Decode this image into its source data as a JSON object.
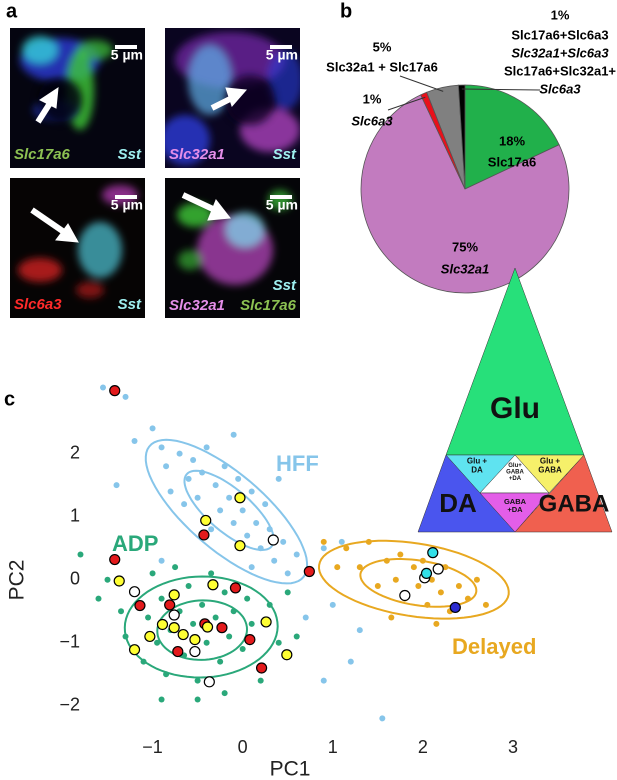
{
  "panel_labels": [
    "a",
    "b",
    "c"
  ],
  "micrographs": [
    {
      "scale_bar": "5 µm",
      "labels": [
        {
          "text": "Slc17a6",
          "color": "#8cc152"
        },
        {
          "text": "Sst",
          "color": "#9ff0f0"
        }
      ]
    },
    {
      "scale_bar": "5 µm",
      "labels": [
        {
          "text": "Slc32a1",
          "color": "#e48ee8"
        },
        {
          "text": "Sst",
          "color": "#9ff0f0"
        }
      ]
    },
    {
      "scale_bar": "5 µm",
      "labels": [
        {
          "text": "Slc6a3",
          "color": "#ff2a2a"
        },
        {
          "text": "Sst",
          "color": "#9ff0f0"
        }
      ]
    },
    {
      "scale_bar": "5 µm",
      "labels": [
        {
          "text": "Sst",
          "color": "#9ff0f0"
        },
        {
          "text": "Slc32a1",
          "color": "#e48ee8"
        },
        {
          "text": "Slc17a6",
          "color": "#8cc152"
        }
      ]
    }
  ],
  "chart_data": [
    {
      "type": "pie",
      "categories": [
        "Slc17a6",
        "Slc32a1",
        "Slc6a3",
        "Slc32a1 + Slc17a6",
        [
          "Slc17a6+Slc6a3",
          "Slc32a1+Slc6a3",
          "Slc17a6+Slc32a1+",
          "Slc6a3"
        ]
      ],
      "values": [
        18,
        75,
        1,
        5,
        1
      ],
      "value_labels": [
        "18%",
        "75%",
        "1%",
        "5%",
        "1%"
      ],
      "colors": [
        "#21b04b",
        "#c27bbf",
        "#e8101a",
        "#808080",
        "#000000"
      ]
    },
    {
      "type": "scatter",
      "xlabel": "PC1",
      "ylabel": "PC2",
      "xlim": [
        -1.65,
        3.3
      ],
      "ylim": [
        -2.4,
        3.2
      ],
      "xticks": [
        {
          "value": -1,
          "label": "−1"
        },
        0,
        1,
        2,
        3
      ],
      "yticks": [
        {
          "value": -2,
          "label": "−2"
        },
        {
          "value": -1,
          "label": "−1"
        },
        0,
        1,
        2
      ],
      "series": [
        {
          "name": "HFF",
          "color": "#86c5ea",
          "x": [
            -1.55,
            -1.3,
            -1.2,
            -1.0,
            -0.9,
            -0.85,
            -0.7,
            -0.6,
            -0.55,
            -0.5,
            -0.45,
            -0.4,
            -0.3,
            -0.25,
            -0.2,
            -0.15,
            -0.1,
            -0.05,
            0.0,
            0.05,
            0.1,
            0.15,
            0.2,
            0.25,
            0.3,
            0.35,
            0.45,
            0.5,
            0.6,
            -0.8,
            -0.65,
            -0.35,
            0.1,
            -1.4,
            0.9,
            1.1,
            1.0,
            1.2,
            1.55,
            0.9,
            1.3,
            0.7,
            -0.9,
            0.4,
            -0.1
          ],
          "y": [
            3.05,
            2.9,
            2.2,
            2.4,
            2.1,
            1.8,
            2.0,
            1.6,
            1.9,
            1.3,
            1.7,
            2.1,
            1.5,
            1.1,
            1.8,
            1.3,
            0.9,
            1.6,
            1.1,
            0.7,
            1.4,
            0.9,
            0.5,
            1.2,
            0.8,
            0.3,
            0.6,
            0.1,
            0.4,
            1.4,
            1.2,
            0.8,
            0.2,
            1.5,
            0.5,
            0.6,
            -0.4,
            -1.3,
            -2.2,
            -1.6,
            -0.8,
            -0.6,
            0.3,
            1.6,
            2.3
          ],
          "ellipses": [
            {
              "center": [
                -0.15,
                1.1
              ],
              "width": 0.75,
              "height": 0.28,
              "angle": -54
            },
            {
              "center": [
                -0.18,
                1.08
              ],
              "width": 1.36,
              "height": 0.5,
              "angle": -54
            }
          ]
        },
        {
          "name": "ADP",
          "color": "#2aa87a",
          "x": [
            -1.8,
            -1.5,
            -1.35,
            -1.3,
            -1.2,
            -1.1,
            -1.05,
            -1.0,
            -0.95,
            -0.9,
            -0.85,
            -0.8,
            -0.75,
            -0.7,
            -0.65,
            -0.6,
            -0.55,
            -0.5,
            -0.45,
            -0.4,
            -0.35,
            -0.3,
            -0.25,
            -0.2,
            -0.15,
            -0.1,
            0.0,
            0.05,
            0.1,
            0.2,
            0.3,
            0.4,
            -0.5,
            -0.2,
            0.5,
            0.6,
            -1.6,
            -0.9
          ],
          "y": [
            0.4,
            0.0,
            -0.5,
            -0.9,
            -0.2,
            -1.3,
            -0.6,
            0.1,
            -1.0,
            -0.3,
            -1.5,
            -0.8,
            0.2,
            -0.5,
            -1.2,
            -0.1,
            -0.7,
            -1.6,
            -0.4,
            -1.0,
            0.1,
            -0.6,
            -1.3,
            -0.2,
            -0.9,
            -0.5,
            -1.1,
            -0.3,
            -0.7,
            -1.6,
            -0.4,
            -1.0,
            -1.9,
            -1.8,
            -0.2,
            -0.9,
            -0.3,
            -1.9
          ],
          "ellipses": [
            {
              "center": [
                -0.45,
                -0.8
              ],
              "width": 0.5,
              "height": 0.47,
              "angle": 15
            },
            {
              "center": [
                -0.46,
                -0.75
              ],
              "width": 0.85,
              "height": 0.8,
              "angle": 10
            }
          ]
        },
        {
          "name": "Delayed",
          "color": "#e8a820",
          "x": [
            0.9,
            1.15,
            1.3,
            1.4,
            1.5,
            1.6,
            1.7,
            1.75,
            1.8,
            1.9,
            1.95,
            2.0,
            2.05,
            2.1,
            2.2,
            2.25,
            2.3,
            2.4,
            2.5,
            2.6,
            2.7,
            1.65,
            2.15,
            1.05
          ],
          "y": [
            0.6,
            0.5,
            0.2,
            0.6,
            -0.1,
            0.3,
            0.0,
            0.4,
            -0.3,
            0.2,
            -0.1,
            0.3,
            -0.4,
            0.0,
            -0.2,
            0.2,
            -0.5,
            -0.1,
            -0.3,
            0.0,
            -0.4,
            -0.6,
            -0.7,
            0.2
          ],
          "ellipses": [
            {
              "center": [
                1.95,
                -0.05
              ],
              "width": 0.66,
              "height": 0.35,
              "angle": -15
            },
            {
              "center": [
                1.9,
                0.0
              ],
              "width": 1.08,
              "height": 0.57,
              "angle": -15
            }
          ]
        },
        {
          "color": "#e31a1c",
          "edgecolor": "#000000",
          "x": [
            -1.42,
            -0.43,
            0.74,
            -1.42,
            -0.08,
            -0.81,
            -0.42,
            -0.23,
            0.08,
            -0.72,
            0.21,
            -1.14
          ],
          "y": [
            3.0,
            0.71,
            0.13,
            0.32,
            -0.13,
            -0.4,
            -0.7,
            -0.76,
            -0.95,
            -1.14,
            -1.4,
            -0.41
          ]
        },
        {
          "color": "#ffff33",
          "edgecolor": "#000000",
          "x": [
            -0.03,
            -0.41,
            -0.03,
            -1.37,
            -0.76,
            -0.33,
            0.26,
            -0.76,
            -0.66,
            -0.53,
            -1.03,
            -1.2,
            0.49,
            -0.39,
            -0.89
          ],
          "y": [
            1.3,
            0.94,
            0.54,
            -0.02,
            -0.24,
            -0.08,
            -0.67,
            -0.76,
            -0.87,
            -0.95,
            -0.9,
            -1.11,
            -1.19,
            -0.75,
            -0.71
          ]
        },
        {
          "color": "#ffffff",
          "edgecolor": "#000000",
          "x": [
            0.34,
            -1.2,
            -0.76,
            -0.53,
            -0.37,
            1.8,
            2.17,
            2.02
          ],
          "y": [
            0.63,
            -0.19,
            -0.56,
            -1.14,
            -1.62,
            -0.25,
            0.17,
            0.03
          ]
        },
        {
          "color": "#33e0e8",
          "edgecolor": "#000000",
          "x": [
            2.11,
            2.04
          ],
          "y": [
            0.43,
            0.1
          ]
        },
        {
          "color": "#2b2bd0",
          "edgecolor": "#000000",
          "x": [
            2.36
          ],
          "y": [
            -0.44
          ]
        }
      ],
      "legend": {
        "type": "triangle",
        "regions": [
          {
            "label": [
              "Glu"
            ],
            "color": "#27e07a"
          },
          {
            "label": [
              "DA"
            ],
            "color": "#4a55ee"
          },
          {
            "label": [
              "GABA"
            ],
            "color": "#f0604f"
          },
          {
            "label": [
              "Glu +",
              "DA"
            ],
            "color": "#5fe3f0"
          },
          {
            "label": [
              "Glu +",
              "GABA"
            ],
            "color": "#f6f06a"
          },
          {
            "label": [
              "Glu+",
              "GABA",
              "+DA"
            ],
            "color": "#ffffff"
          },
          {
            "label": [
              "GABA",
              "+DA"
            ],
            "color": "#e35ee8"
          }
        ]
      }
    }
  ]
}
